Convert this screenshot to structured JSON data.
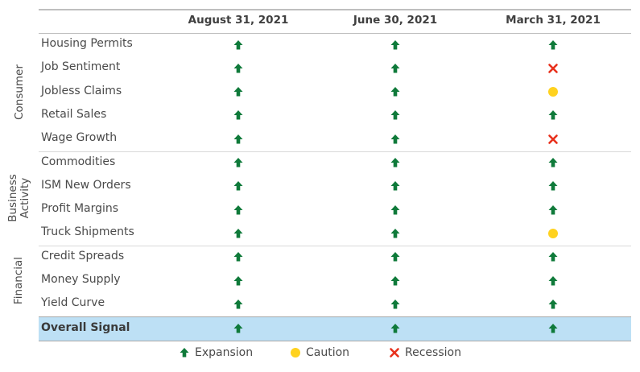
{
  "columns": [
    "August 31, 2021",
    "June 30, 2021",
    "March 31, 2021"
  ],
  "groups": [
    {
      "name": "Consumer",
      "rows": [
        {
          "label": "Housing Permits",
          "signals": [
            "expansion",
            "expansion",
            "expansion"
          ]
        },
        {
          "label": "Job Sentiment",
          "signals": [
            "expansion",
            "expansion",
            "recession"
          ]
        },
        {
          "label": "Jobless Claims",
          "signals": [
            "expansion",
            "expansion",
            "caution"
          ]
        },
        {
          "label": "Retail Sales",
          "signals": [
            "expansion",
            "expansion",
            "expansion"
          ]
        },
        {
          "label": "Wage Growth",
          "signals": [
            "expansion",
            "expansion",
            "recession"
          ]
        }
      ]
    },
    {
      "name": "Business Activity",
      "rows": [
        {
          "label": "Commodities",
          "signals": [
            "expansion",
            "expansion",
            "expansion"
          ]
        },
        {
          "label": "ISM New Orders",
          "signals": [
            "expansion",
            "expansion",
            "expansion"
          ]
        },
        {
          "label": "Profit Margins",
          "signals": [
            "expansion",
            "expansion",
            "expansion"
          ]
        },
        {
          "label": "Truck Shipments",
          "signals": [
            "expansion",
            "expansion",
            "caution"
          ]
        }
      ]
    },
    {
      "name": "Financial",
      "rows": [
        {
          "label": "Credit Spreads",
          "signals": [
            "expansion",
            "expansion",
            "expansion"
          ]
        },
        {
          "label": "Money Supply",
          "signals": [
            "expansion",
            "expansion",
            "expansion"
          ]
        },
        {
          "label": "Yield Curve",
          "signals": [
            "expansion",
            "expansion",
            "expansion"
          ]
        }
      ]
    }
  ],
  "overall": {
    "label": "Overall Signal",
    "signals": [
      "expansion",
      "expansion",
      "expansion"
    ]
  },
  "legend": [
    {
      "key": "expansion",
      "label": "Expansion"
    },
    {
      "key": "caution",
      "label": "Caution"
    },
    {
      "key": "recession",
      "label": "Recession"
    }
  ],
  "colors": {
    "expansion": "#0f7a3a",
    "caution": "#ffd21f",
    "recession": "#e8301c",
    "overall_bg": "#bde0f5"
  }
}
